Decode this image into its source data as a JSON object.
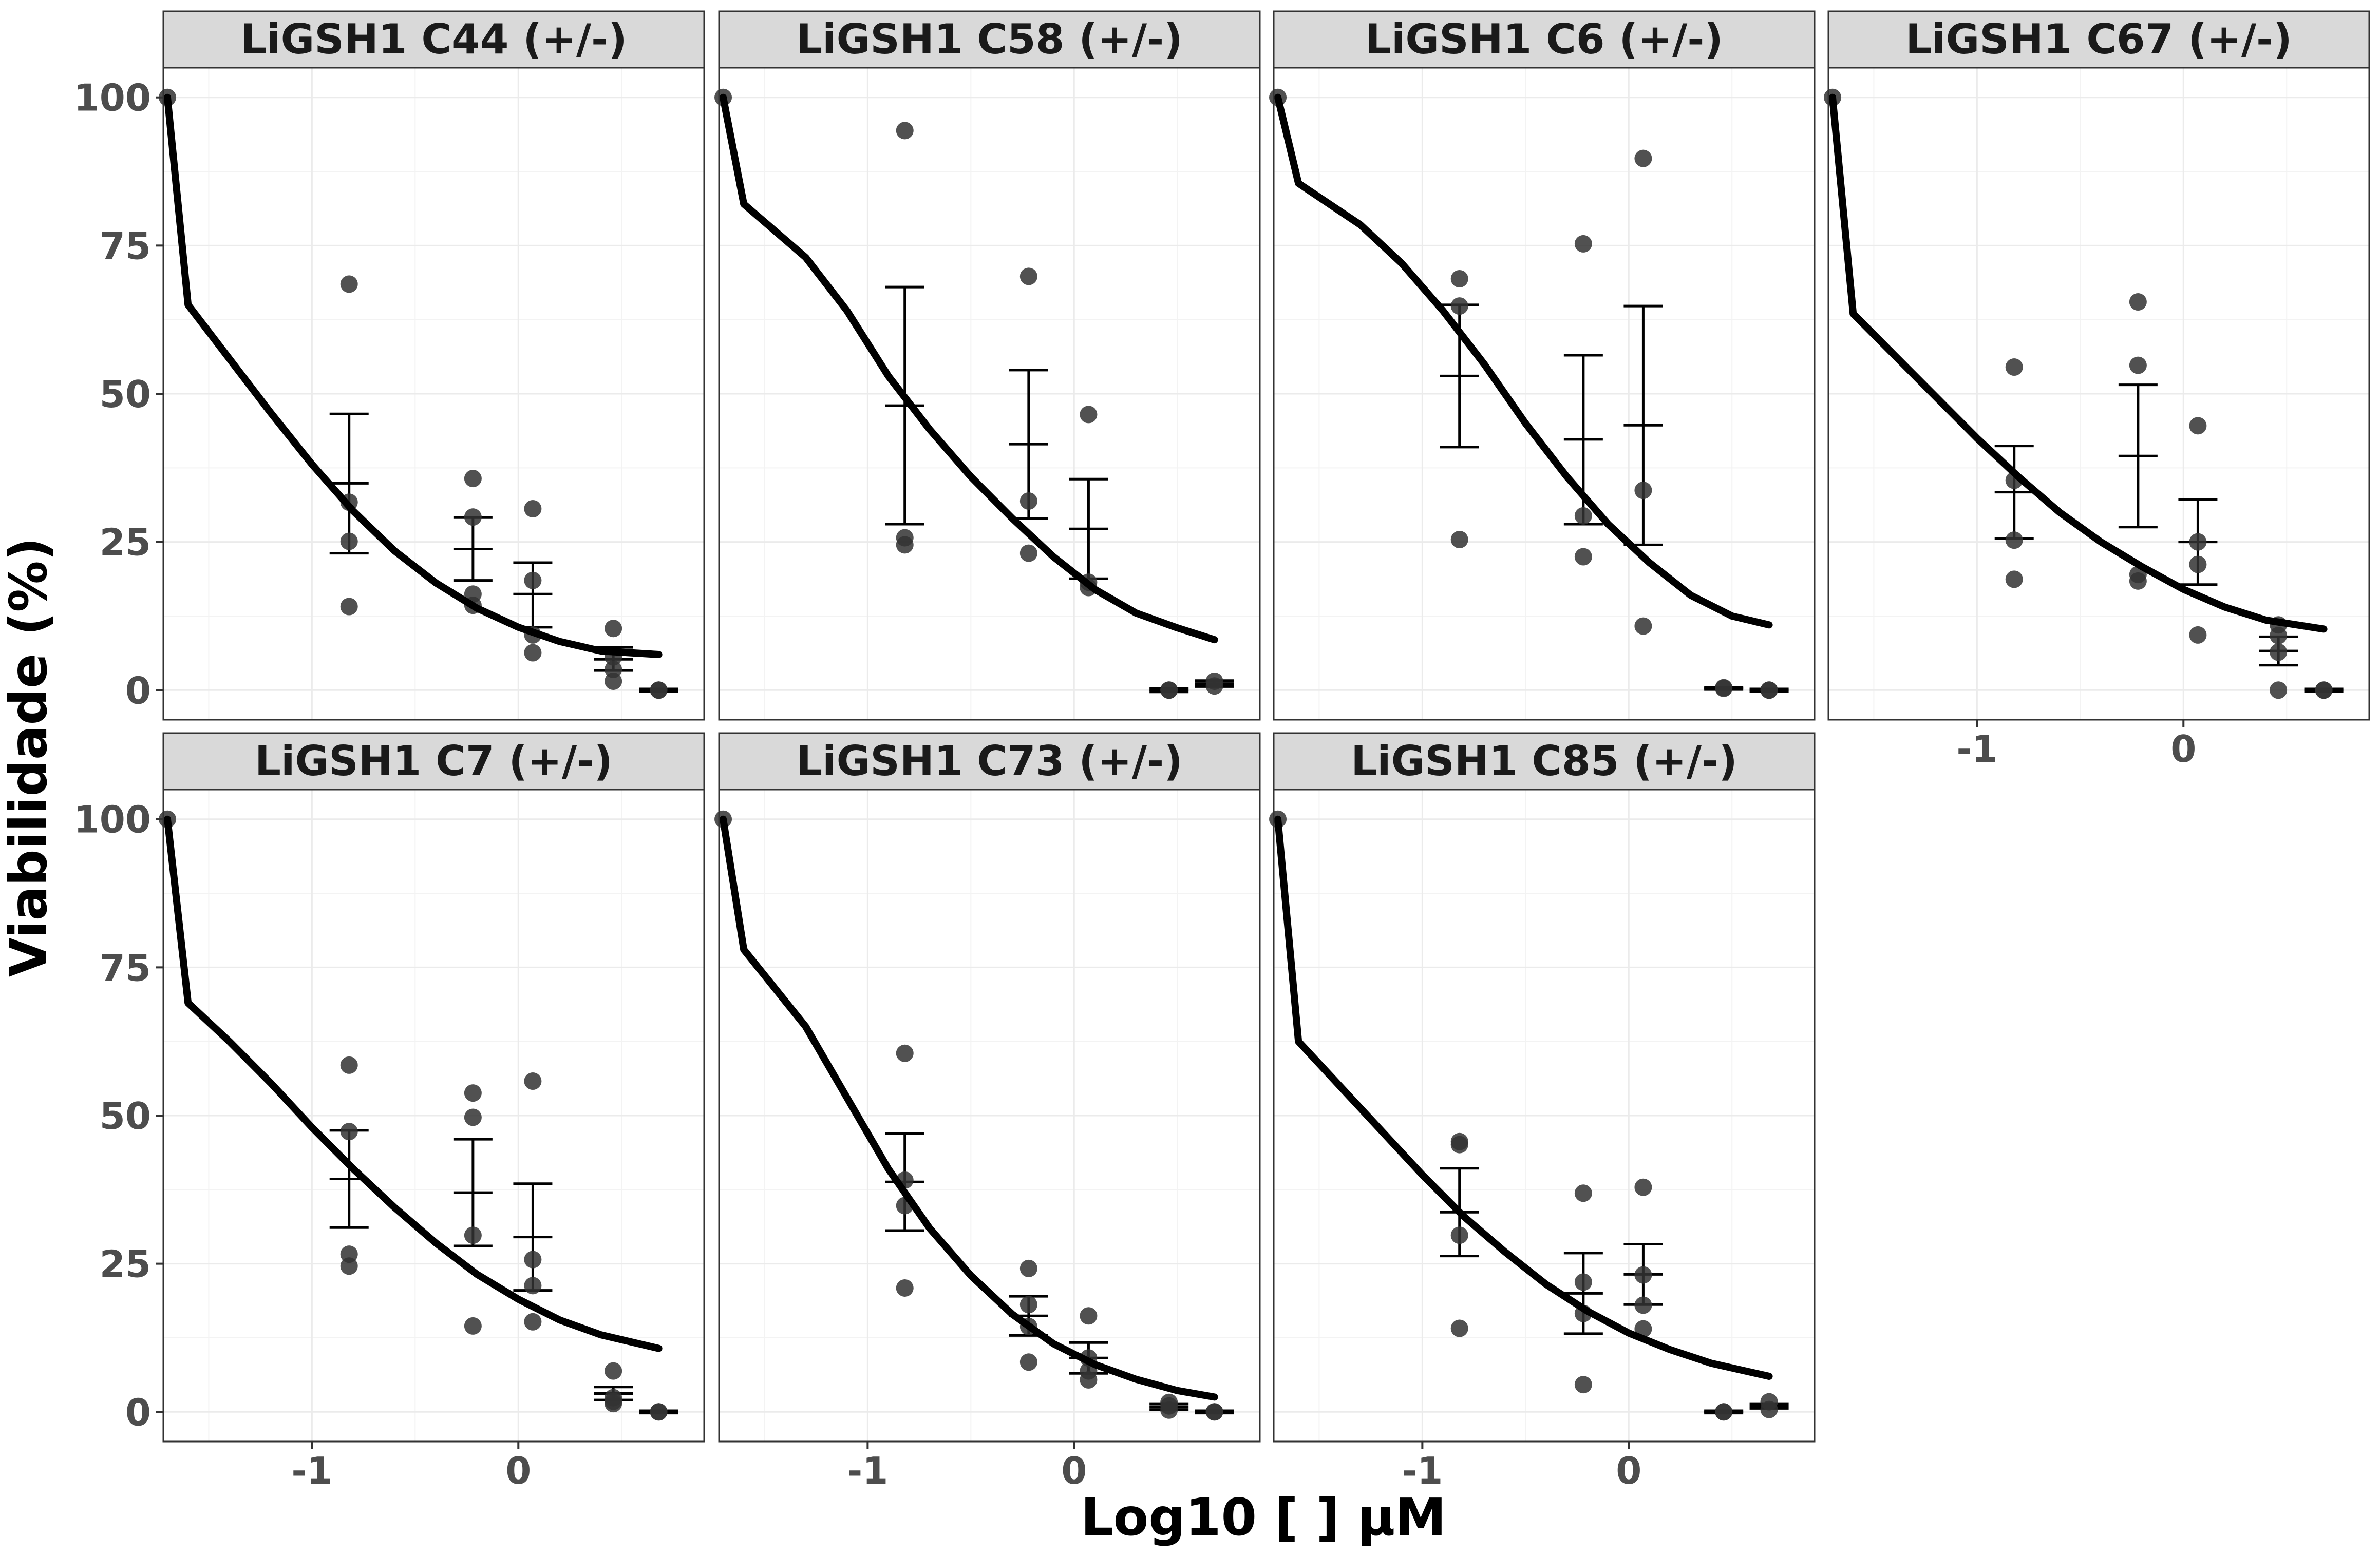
{
  "chart_data": {
    "type": "scatter",
    "layout": "facet-grid-2x4",
    "xlabel": "Log10 [   ] µM",
    "ylabel": "Viabilidade (%)",
    "xlim": [
      -1.72,
      0.9
    ],
    "ylim": [
      -5,
      105
    ],
    "xticks": [
      -1,
      0
    ],
    "yticks": [
      0,
      25,
      50,
      75,
      100
    ],
    "grid": true,
    "colors": {
      "points": "#333333",
      "curve": "#000000",
      "errorbars": "#000000",
      "strip_bg": "#d9d9d9",
      "panel_border": "#333333",
      "grid": "#ebebeb"
    },
    "panels": [
      {
        "title": "LiGSH1 C44 (+/-)",
        "show_x_axis": false,
        "show_y_axis": true,
        "points": [
          [
            -1.7,
            100
          ],
          [
            -0.82,
            68.5
          ],
          [
            -0.82,
            31.7
          ],
          [
            -0.82,
            25.1
          ],
          [
            -0.82,
            14.1
          ],
          [
            -0.22,
            35.7
          ],
          [
            -0.22,
            29.2
          ],
          [
            -0.22,
            16.2
          ],
          [
            -0.22,
            14.3
          ],
          [
            0.07,
            30.6
          ],
          [
            0.07,
            18.5
          ],
          [
            0.07,
            9.3
          ],
          [
            0.07,
            6.3
          ],
          [
            0.46,
            10.4
          ],
          [
            0.46,
            5.6
          ],
          [
            0.46,
            3.5
          ],
          [
            0.46,
            1.5
          ],
          [
            0.68,
            0
          ],
          [
            0.68,
            0
          ]
        ],
        "errorbars": [
          [
            -0.82,
            34.9,
            46.6,
            23.1
          ],
          [
            -0.22,
            23.8,
            29.1,
            18.5
          ],
          [
            0.07,
            16.2,
            21.5,
            10.6
          ],
          [
            0.46,
            5.2,
            7.2,
            3.3
          ],
          [
            0.68,
            0,
            0.2,
            -0.2
          ]
        ],
        "curve": [
          [
            -1.7,
            100
          ],
          [
            -1.6,
            65
          ],
          [
            -1.4,
            55.9
          ],
          [
            -1.2,
            46.8
          ],
          [
            -1.0,
            38.1
          ],
          [
            -0.8,
            30.2
          ],
          [
            -0.6,
            23.5
          ],
          [
            -0.4,
            18.1
          ],
          [
            -0.2,
            13.8
          ],
          [
            0.0,
            10.6
          ],
          [
            0.2,
            8.2
          ],
          [
            0.4,
            6.6
          ],
          [
            0.68,
            6.0
          ]
        ]
      },
      {
        "title": "LiGSH1 C58 (+/-)",
        "show_x_axis": false,
        "show_y_axis": false,
        "points": [
          [
            -1.7,
            100
          ],
          [
            -0.82,
            94.4
          ],
          [
            -0.82,
            25.7
          ],
          [
            -0.82,
            24.5
          ],
          [
            -0.22,
            69.8
          ],
          [
            -0.22,
            31.9
          ],
          [
            -0.22,
            23.1
          ],
          [
            0.07,
            46.5
          ],
          [
            0.07,
            18.2
          ],
          [
            0.07,
            17.3
          ],
          [
            0.46,
            0
          ],
          [
            0.46,
            0
          ],
          [
            0.68,
            1.5
          ],
          [
            0.68,
            0.7
          ]
        ],
        "errorbars": [
          [
            -0.82,
            48,
            68,
            28
          ],
          [
            -0.22,
            41.5,
            54,
            29
          ],
          [
            0.07,
            27.2,
            35.6,
            18.8
          ],
          [
            0.46,
            0,
            0.3,
            -0.3
          ],
          [
            0.68,
            1.1,
            1.6,
            0.6
          ]
        ],
        "curve": [
          [
            -1.7,
            100
          ],
          [
            -1.6,
            82
          ],
          [
            -1.3,
            73
          ],
          [
            -1.1,
            64
          ],
          [
            -0.9,
            53
          ],
          [
            -0.7,
            44
          ],
          [
            -0.5,
            36
          ],
          [
            -0.3,
            29
          ],
          [
            -0.1,
            22.5
          ],
          [
            0.1,
            17
          ],
          [
            0.3,
            13
          ],
          [
            0.5,
            10.5
          ],
          [
            0.68,
            8.5
          ]
        ]
      },
      {
        "title": "LiGSH1 C6 (+/-)",
        "show_x_axis": false,
        "show_y_axis": false,
        "points": [
          [
            -1.7,
            100
          ],
          [
            -0.82,
            69.4
          ],
          [
            -0.82,
            64.8
          ],
          [
            -0.82,
            25.4
          ],
          [
            -0.22,
            75.3
          ],
          [
            -0.22,
            29.4
          ],
          [
            -0.22,
            22.5
          ],
          [
            0.07,
            89.7
          ],
          [
            0.07,
            33.7
          ],
          [
            0.07,
            10.8
          ],
          [
            0.46,
            0.4
          ],
          [
            0.46,
            0.3
          ],
          [
            0.68,
            0
          ],
          [
            0.68,
            0
          ]
        ],
        "errorbars": [
          [
            -0.82,
            53,
            65,
            41
          ],
          [
            -0.22,
            42.3,
            56.5,
            28
          ],
          [
            0.07,
            44.7,
            64.8,
            24.5
          ],
          [
            0.46,
            0.3,
            0.5,
            0.1
          ],
          [
            0.68,
            0,
            0.2,
            -0.2
          ]
        ],
        "curve": [
          [
            -1.7,
            100
          ],
          [
            -1.6,
            85.5
          ],
          [
            -1.3,
            78.5
          ],
          [
            -1.1,
            72
          ],
          [
            -0.9,
            64
          ],
          [
            -0.7,
            55
          ],
          [
            -0.5,
            45
          ],
          [
            -0.3,
            36
          ],
          [
            -0.1,
            28
          ],
          [
            0.1,
            21.5
          ],
          [
            0.3,
            16
          ],
          [
            0.5,
            12.5
          ],
          [
            0.68,
            11
          ]
        ]
      },
      {
        "title": "LiGSH1 C67 (+/-)",
        "show_x_axis": true,
        "show_y_axis": false,
        "points": [
          [
            -1.7,
            100
          ],
          [
            -0.82,
            54.5
          ],
          [
            -0.82,
            35.4
          ],
          [
            -0.82,
            25.3
          ],
          [
            -0.82,
            18.7
          ],
          [
            -0.22,
            65.5
          ],
          [
            -0.22,
            54.8
          ],
          [
            -0.22,
            19.5
          ],
          [
            -0.22,
            18.4
          ],
          [
            0.07,
            44.6
          ],
          [
            0.07,
            25.0
          ],
          [
            0.07,
            21.2
          ],
          [
            0.07,
            9.3
          ],
          [
            0.46,
            11
          ],
          [
            0.46,
            9.2
          ],
          [
            0.46,
            6.4
          ],
          [
            0.46,
            0
          ],
          [
            0.68,
            0
          ],
          [
            0.68,
            0
          ]
        ],
        "errorbars": [
          [
            -0.82,
            33.4,
            41.2,
            25.6
          ],
          [
            -0.22,
            39.5,
            51.5,
            27.5
          ],
          [
            0.07,
            25,
            32.2,
            17.8
          ],
          [
            0.46,
            6.6,
            9,
            4.2
          ],
          [
            0.68,
            0,
            0.2,
            -0.2
          ]
        ],
        "curve": [
          [
            -1.7,
            100
          ],
          [
            -1.6,
            63.5
          ],
          [
            -1.4,
            56.5
          ],
          [
            -1.2,
            49.5
          ],
          [
            -1.0,
            42.5
          ],
          [
            -0.8,
            36
          ],
          [
            -0.6,
            30
          ],
          [
            -0.4,
            25
          ],
          [
            -0.2,
            20.8
          ],
          [
            0.0,
            17
          ],
          [
            0.2,
            14
          ],
          [
            0.4,
            11.8
          ],
          [
            0.68,
            10.3
          ]
        ]
      },
      {
        "title": "LiGSH1 C7 (+/-)",
        "show_x_axis": true,
        "show_y_axis": true,
        "points": [
          [
            -1.7,
            100
          ],
          [
            -0.82,
            58.5
          ],
          [
            -0.82,
            47.3
          ],
          [
            -0.82,
            26.6
          ],
          [
            -0.82,
            24.6
          ],
          [
            -0.22,
            53.8
          ],
          [
            -0.22,
            49.7
          ],
          [
            -0.22,
            29.8
          ],
          [
            -0.22,
            14.5
          ],
          [
            0.07,
            55.8
          ],
          [
            0.07,
            25.7
          ],
          [
            0.07,
            21.3
          ],
          [
            0.07,
            15.2
          ],
          [
            0.46,
            6.9
          ],
          [
            0.46,
            2.4
          ],
          [
            0.46,
            1.8
          ],
          [
            0.46,
            1.4
          ],
          [
            0.68,
            0
          ],
          [
            0.68,
            0
          ]
        ],
        "errorbars": [
          [
            -0.82,
            39.3,
            47.5,
            31.1
          ],
          [
            -0.22,
            37,
            46,
            28
          ],
          [
            0.07,
            29.5,
            38.5,
            20.5
          ],
          [
            0.46,
            3.1,
            4.2,
            2
          ],
          [
            0.68,
            0,
            0.2,
            -0.2
          ]
        ],
        "curve": [
          [
            -1.7,
            100
          ],
          [
            -1.6,
            69
          ],
          [
            -1.4,
            62.5
          ],
          [
            -1.2,
            55.5
          ],
          [
            -1.0,
            48
          ],
          [
            -0.8,
            41
          ],
          [
            -0.6,
            34.5
          ],
          [
            -0.4,
            28.5
          ],
          [
            -0.2,
            23.2
          ],
          [
            0.0,
            19
          ],
          [
            0.2,
            15.5
          ],
          [
            0.4,
            13
          ],
          [
            0.68,
            10.7
          ]
        ]
      },
      {
        "title": "LiGSH1 C73 (+/-)",
        "show_x_axis": true,
        "show_y_axis": false,
        "points": [
          [
            -1.7,
            100
          ],
          [
            -0.82,
            60.5
          ],
          [
            -0.82,
            39.1
          ],
          [
            -0.82,
            34.8
          ],
          [
            -0.82,
            20.9
          ],
          [
            -0.22,
            24.2
          ],
          [
            -0.22,
            18.1
          ],
          [
            -0.22,
            14.4
          ],
          [
            -0.22,
            8.4
          ],
          [
            0.07,
            16.2
          ],
          [
            0.07,
            9.1
          ],
          [
            0.07,
            6.9
          ],
          [
            0.07,
            5.4
          ],
          [
            0.46,
            1.6
          ],
          [
            0.46,
            1.0
          ],
          [
            0.46,
            0.3
          ],
          [
            0.68,
            0
          ],
          [
            0.68,
            0
          ]
        ],
        "errorbars": [
          [
            -0.82,
            38.8,
            47,
            30.6
          ],
          [
            -0.22,
            16.2,
            19.5,
            12.9
          ],
          [
            0.07,
            9.1,
            11.7,
            6.5
          ],
          [
            0.46,
            0.9,
            1.4,
            0.4
          ],
          [
            0.68,
            0,
            0.2,
            -0.2
          ]
        ],
        "curve": [
          [
            -1.7,
            100
          ],
          [
            -1.6,
            78
          ],
          [
            -1.3,
            65
          ],
          [
            -1.1,
            53
          ],
          [
            -0.9,
            41
          ],
          [
            -0.7,
            31
          ],
          [
            -0.5,
            23
          ],
          [
            -0.3,
            16.5
          ],
          [
            -0.1,
            11.5
          ],
          [
            0.1,
            8
          ],
          [
            0.3,
            5.5
          ],
          [
            0.5,
            3.6
          ],
          [
            0.68,
            2.5
          ]
        ]
      },
      {
        "title": "LiGSH1 C85 (+/-)",
        "show_x_axis": true,
        "show_y_axis": false,
        "points": [
          [
            -1.7,
            100
          ],
          [
            -0.82,
            45.6
          ],
          [
            -0.82,
            45.1
          ],
          [
            -0.82,
            29.8
          ],
          [
            -0.82,
            14.1
          ],
          [
            -0.22,
            36.9
          ],
          [
            -0.22,
            21.9
          ],
          [
            -0.22,
            16.6
          ],
          [
            -0.22,
            4.6
          ],
          [
            0.07,
            37.9
          ],
          [
            0.07,
            23.1
          ],
          [
            0.07,
            18
          ],
          [
            0.07,
            14
          ],
          [
            0.46,
            0
          ],
          [
            0.46,
            0
          ],
          [
            0.68,
            1.7
          ],
          [
            0.68,
            0.4
          ]
        ],
        "errorbars": [
          [
            -0.82,
            33.7,
            41.1,
            26.3
          ],
          [
            -0.22,
            20,
            26.8,
            13.2
          ],
          [
            0.07,
            23.2,
            28.3,
            18.1
          ],
          [
            0.46,
            0,
            0.2,
            -0.2
          ],
          [
            0.68,
            1,
            1.4,
            0.6
          ]
        ],
        "curve": [
          [
            -1.7,
            100
          ],
          [
            -1.6,
            62.5
          ],
          [
            -1.4,
            55
          ],
          [
            -1.2,
            47.5
          ],
          [
            -1.0,
            40
          ],
          [
            -0.8,
            33
          ],
          [
            -0.6,
            27
          ],
          [
            -0.4,
            21.5
          ],
          [
            -0.2,
            17
          ],
          [
            0.0,
            13.3
          ],
          [
            0.2,
            10.5
          ],
          [
            0.4,
            8.2
          ],
          [
            0.68,
            6
          ]
        ]
      }
    ]
  }
}
